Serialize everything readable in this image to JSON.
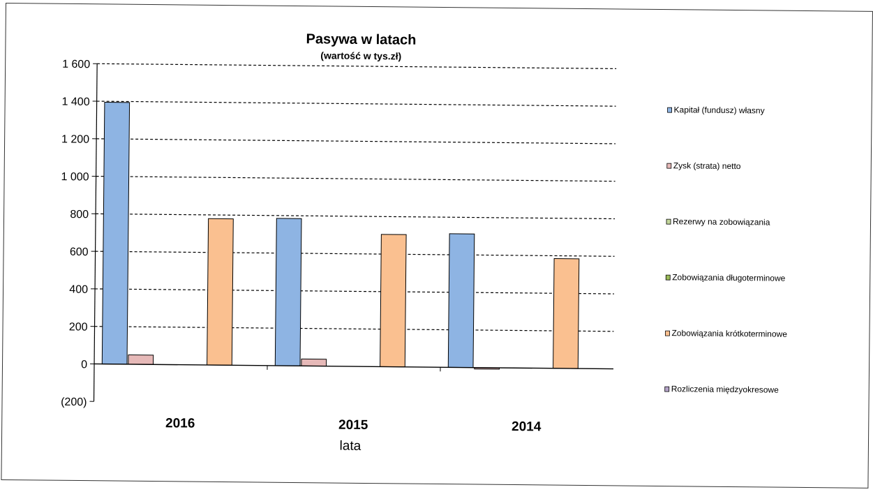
{
  "chart_data": {
    "type": "bar",
    "title": "Pasywa w latach",
    "subtitle": "(wartość w tys.zł)",
    "xlabel": "lata",
    "ylabel": "",
    "categories": [
      "2016",
      "2015",
      "2014"
    ],
    "ylim": [
      -200,
      1600
    ],
    "yticks": [
      -200,
      0,
      200,
      400,
      600,
      800,
      1000,
      1200,
      1400,
      1600
    ],
    "ytick_labels": [
      "(200)",
      "0",
      "200",
      "400",
      "600",
      "800",
      "1 000",
      "1 200",
      "1 400",
      "1 600"
    ],
    "grid": "dashed horizontal",
    "legend_position": "right",
    "series": [
      {
        "name": "Kapitał (fundusz) własny",
        "color": "#8eb4e3",
        "values": [
          1395,
          785,
          712
        ]
      },
      {
        "name": "Zysk (strata) netto",
        "color": "#e6b9b8",
        "values": [
          50,
          37,
          -6
        ]
      },
      {
        "name": "Rezerwy na zobowiązania",
        "color": "#c3d69b",
        "values": [
          0,
          0,
          0
        ]
      },
      {
        "name": "Zobowiązania długoterminowe",
        "color": "#9bbb59",
        "values": [
          0,
          0,
          0
        ]
      },
      {
        "name": "Zobowiązania krótkoterminowe",
        "color": "#fac090",
        "values": [
          780,
          705,
          585
        ]
      },
      {
        "name": "Rozliczenia międzyokresowe",
        "color": "#b3a2c7",
        "values": [
          0,
          0,
          0
        ]
      }
    ]
  }
}
